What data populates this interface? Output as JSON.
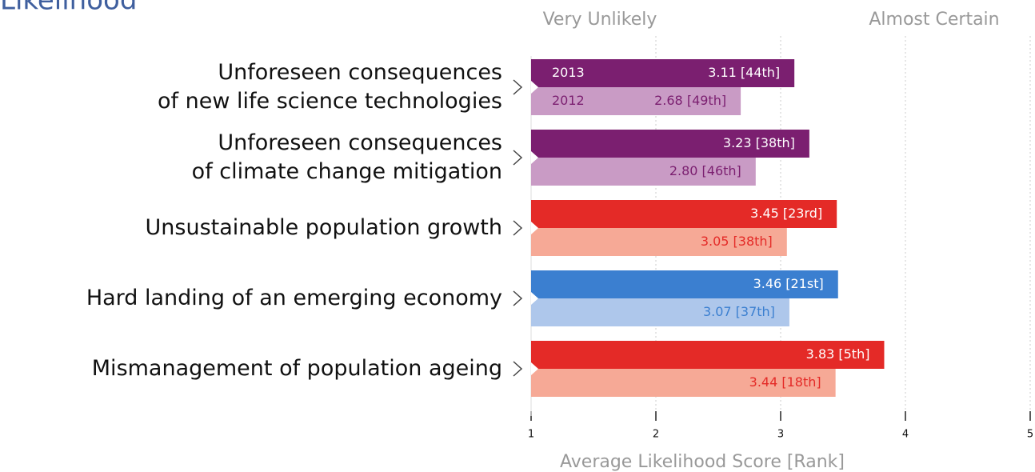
{
  "chart_data": {
    "type": "bar",
    "orientation": "horizontal",
    "title": "Likelihood",
    "scale_labels": [
      "Very Unlikely",
      "Almost Certain"
    ],
    "x_label": "Average Likelihood Score [Rank]",
    "categories": [
      "Unforeseen consequences\nof new life science technologies",
      "Unforeseen consequences\nof climate change mitigation",
      "Unsustainable population growth",
      "Hard landing of an emerging economy",
      "Mismanagement of population ageing"
    ],
    "series": [
      {
        "name": "2013",
        "colors": [
          "#7b1f70",
          "#7b1f70",
          "#e42a27",
          "#3b7fd0",
          "#e42a27"
        ],
        "values": [
          3.11,
          3.23,
          3.45,
          3.46,
          3.83
        ],
        "value_labels": [
          "3.11 [44th]",
          "3.23 [38th]",
          "3.45 [23rd]",
          "3.46 [21st]",
          "3.83 [5th]"
        ]
      },
      {
        "name": "2012",
        "colors": [
          "#c99bc5",
          "#c99bc5",
          "#f6a996",
          "#aec7eb",
          "#f6a996"
        ],
        "values": [
          2.68,
          2.8,
          3.05,
          3.07,
          3.44
        ],
        "value_labels": [
          "2.68 [49th]",
          "2.80 [46th]",
          "3.05 [38th]",
          "3.07 [37th]",
          "3.44 [18th]"
        ]
      }
    ],
    "xlim": [
      1,
      5
    ],
    "xticks": [
      1,
      2,
      3,
      4,
      5
    ],
    "grid": true
  }
}
